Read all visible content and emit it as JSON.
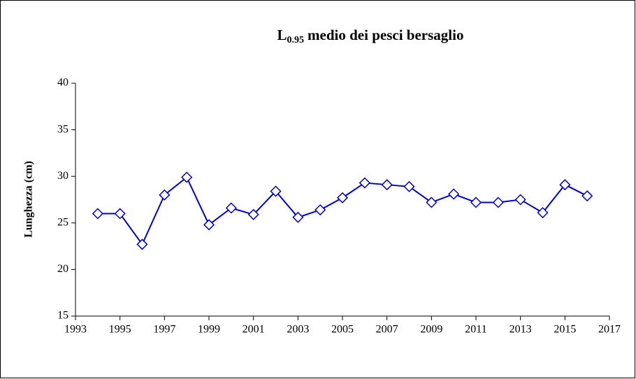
{
  "chart_data": {
    "type": "line",
    "title": {
      "text": "L",
      "subscript": "0.95",
      "rest": "medio dei pesci bersaglio"
    },
    "y_label": "Lunghezza (cm)",
    "x": [
      1994,
      1995,
      1996,
      1997,
      1998,
      1999,
      2000,
      2001,
      2002,
      2003,
      2004,
      2005,
      2006,
      2007,
      2008,
      2009,
      2010,
      2011,
      2012,
      2013,
      2014,
      2015,
      2016
    ],
    "series": [
      {
        "color": "#0000cc",
        "values": [
          26.0,
          26.0,
          22.7,
          28.0,
          29.9,
          24.8,
          26.6,
          25.9,
          28.4,
          25.6,
          26.4,
          27.7,
          29.3,
          29.1,
          28.9,
          27.2,
          28.1,
          27.2,
          27.2,
          27.5,
          26.1,
          29.1,
          27.9
        ]
      }
    ],
    "xlim": [
      1993,
      2017
    ],
    "xticks": [
      1993,
      1995,
      1997,
      1999,
      2001,
      2003,
      2005,
      2007,
      2009,
      2011,
      2013,
      2015,
      2017
    ],
    "ylim": [
      15,
      40
    ],
    "yticks": [
      15,
      20,
      25,
      30,
      35,
      40
    ],
    "grid": false
  }
}
